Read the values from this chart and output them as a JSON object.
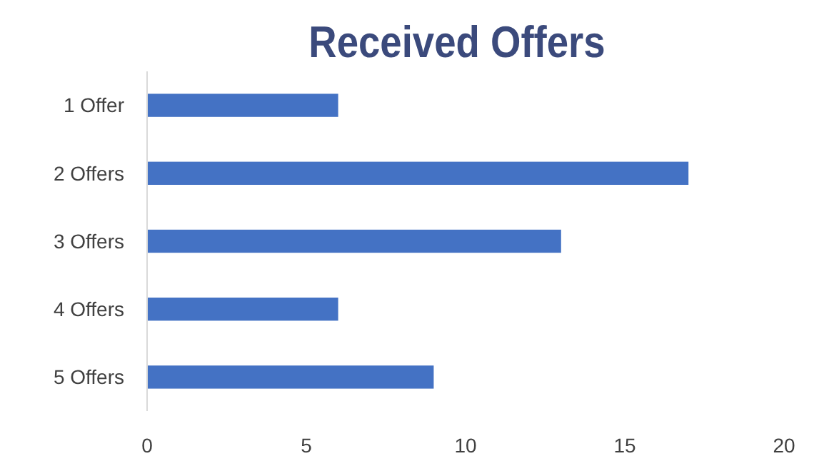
{
  "chart_data": {
    "type": "bar",
    "orientation": "horizontal",
    "title": "Received Offers",
    "categories": [
      "1 Offer",
      "2 Offers",
      "3 Offers",
      "4 Offers",
      "5 Offers"
    ],
    "values": [
      6,
      17,
      13,
      6,
      9
    ],
    "color": "#4472c4",
    "xlim": [
      0,
      20
    ],
    "xticks": [
      0,
      5,
      10,
      15,
      20
    ],
    "grid": false
  }
}
